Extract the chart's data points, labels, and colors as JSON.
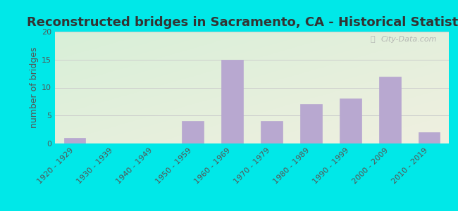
{
  "title": "Reconstructed bridges in Sacramento, CA - Historical Statistics",
  "categories": [
    "1920 - 1929",
    "1930 - 1939",
    "1940 - 1949",
    "1950 - 1959",
    "1960 - 1969",
    "1970 - 1979",
    "1980 - 1989",
    "1990 - 1999",
    "2000 - 2009",
    "2010 - 2019"
  ],
  "values": [
    1,
    0,
    0,
    4,
    15,
    4,
    7,
    8,
    12,
    2
  ],
  "bar_color": "#b8a8d0",
  "ylabel": "number of bridges",
  "ylim": [
    0,
    20
  ],
  "yticks": [
    0,
    5,
    10,
    15,
    20
  ],
  "background_color": "#00e8e8",
  "plot_bg_color_top_left": "#d8efd8",
  "plot_bg_color_bottom_right": "#f0f0e0",
  "grid_color": "#cccccc",
  "title_fontsize": 13,
  "axis_label_fontsize": 9,
  "tick_fontsize": 8,
  "watermark_text": "City-Data.com",
  "title_color": "#333333",
  "tick_label_color": "#555555",
  "ylabel_color": "#555555"
}
